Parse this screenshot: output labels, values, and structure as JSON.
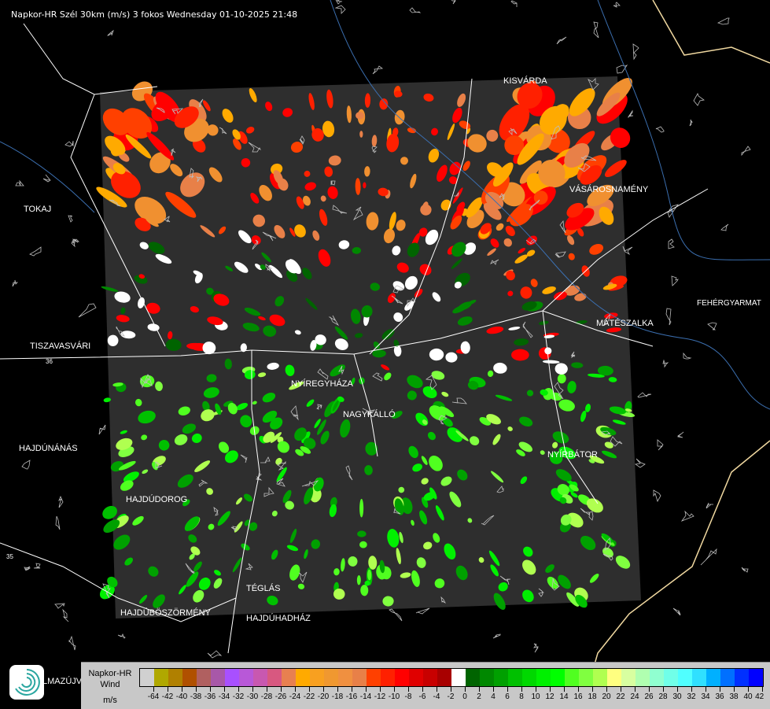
{
  "title": "Napkor-HR Szél 30km (m/s) 3 fokos Wednesday 01-10-2025 21:48",
  "map": {
    "cities": [
      {
        "name": "KISVÁRDA"
      },
      {
        "name": "VÁSÁROSNAMÉNY"
      },
      {
        "name": "TOKAJ"
      },
      {
        "name": "FEHÉRGYARMAT"
      },
      {
        "name": "MÁTÉSZALKA"
      },
      {
        "name": "TISZAVASVÁRI"
      },
      {
        "name": "NYÍREGYHÁZA"
      },
      {
        "name": "NAGYKÁLLÓ"
      },
      {
        "name": "HAJDÚNÁNÁS"
      },
      {
        "name": "NYÍRBÁTOR"
      },
      {
        "name": "HAJDÚDOROG"
      },
      {
        "name": "TÉGLÁS"
      },
      {
        "name": "HAJDÚBÖSZÖRMÉNY"
      },
      {
        "name": "HAJDÚHADHÁZ"
      },
      {
        "name": "LMAZÚJVÁROS"
      }
    ],
    "road_numbers": [
      "36",
      "35"
    ],
    "colors": {
      "background": "#000000",
      "radar_area": "#2e2e2e",
      "borders": "#c8c8c8",
      "rivers": "#3b6fb0",
      "roads": "#ffffff",
      "country_border": "#f0d8a0"
    }
  },
  "legend": {
    "line1": "Napkor-HR",
    "line2": "Wind",
    "line3": "m/s",
    "colors": [
      "#d0d0d0",
      "#b0a800",
      "#b08000",
      "#b05000",
      "#b06060",
      "#a858a8",
      "#a850ff",
      "#b858d8",
      "#c858b0",
      "#d85880",
      "#e88050",
      "#ffaa00",
      "#f8a020",
      "#f09830",
      "#f09040",
      "#e88048",
      "#ff4000",
      "#ff2000",
      "#ff0000",
      "#e00000",
      "#c80000",
      "#a80000",
      "#ffffff",
      "#006400",
      "#008800",
      "#00a000",
      "#00c000",
      "#00d800",
      "#00f000",
      "#00ff00",
      "#50ff20",
      "#80ff40",
      "#b0ff50",
      "#ffff80",
      "#d8ffa0",
      "#b0ffb0",
      "#90ffd0",
      "#70ffe8",
      "#50ffff",
      "#30e0ff",
      "#00b0ff",
      "#0070ff",
      "#0030ff",
      "#0000ff"
    ],
    "labels": [
      "-64",
      "-42",
      "-40",
      "-38",
      "-36",
      "-34",
      "-32",
      "-30",
      "-28",
      "-26",
      "-24",
      "-22",
      "-20",
      "-18",
      "-16",
      "-14",
      "-12",
      "-10",
      "-8",
      "-6",
      "-4",
      "-2",
      "0",
      "2",
      "4",
      "6",
      "8",
      "10",
      "12",
      "14",
      "16",
      "18",
      "20",
      "22",
      "24",
      "26",
      "28",
      "30",
      "32",
      "34",
      "36",
      "38",
      "40",
      "42"
    ]
  }
}
